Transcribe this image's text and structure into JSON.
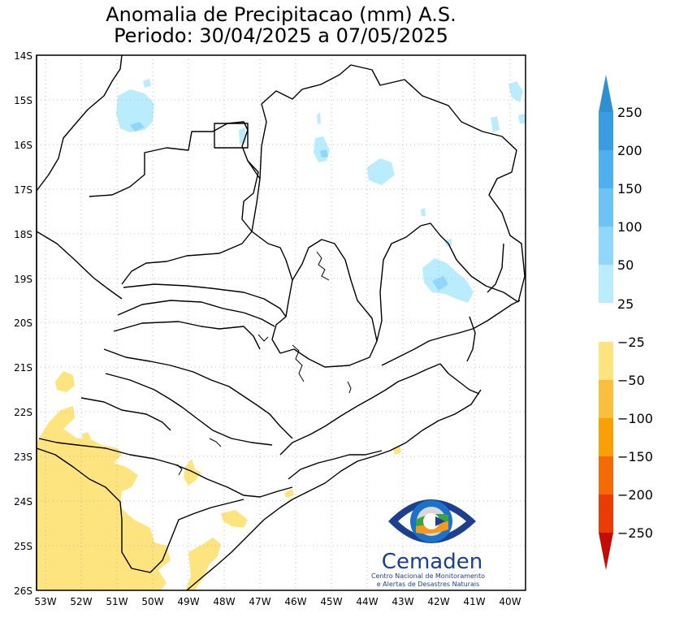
{
  "title": {
    "line1": "Anomalia de Precipitacao (mm) A.S.",
    "line2": "Periodo: 30/04/2025 a 07/05/2025"
  },
  "map": {
    "lat_labels": [
      "14S",
      "15S",
      "16S",
      "17S",
      "18S",
      "19S",
      "20S",
      "21S",
      "22S",
      "23S",
      "24S",
      "25S",
      "26S"
    ],
    "lon_labels": [
      "53W",
      "52W",
      "51W",
      "50W",
      "49W",
      "48W",
      "47W",
      "46W",
      "45W",
      "44W",
      "43W",
      "42W",
      "41W",
      "40W"
    ]
  },
  "colorbar": {
    "labels": [
      "250",
      "200",
      "150",
      "100",
      "50",
      "25",
      "−25",
      "−50",
      "−100",
      "−150",
      "−200",
      "−250"
    ],
    "colors": {
      "positive_top": "#2f8fd0",
      "pos_200_250": "#3a9de0",
      "pos_150_200": "#4fb0ee",
      "pos_100_150": "#6cc4f5",
      "pos_50_100": "#8fd7fb",
      "pos_25_50": "#b9ecfd",
      "neutral": "#ffffff",
      "neg_25_50": "#fde47f",
      "neg_50_100": "#fbbf3f",
      "neg_100_150": "#f8a004",
      "neg_150_200": "#f46a05",
      "neg_200_250": "#ec3c06",
      "negative_bottom": "#c20d05"
    }
  },
  "logo": {
    "name": "Cemaden",
    "subtitle1": "Centro Nacional de Monitoramento",
    "subtitle2": "e Alertas de Desastres Naturais"
  }
}
